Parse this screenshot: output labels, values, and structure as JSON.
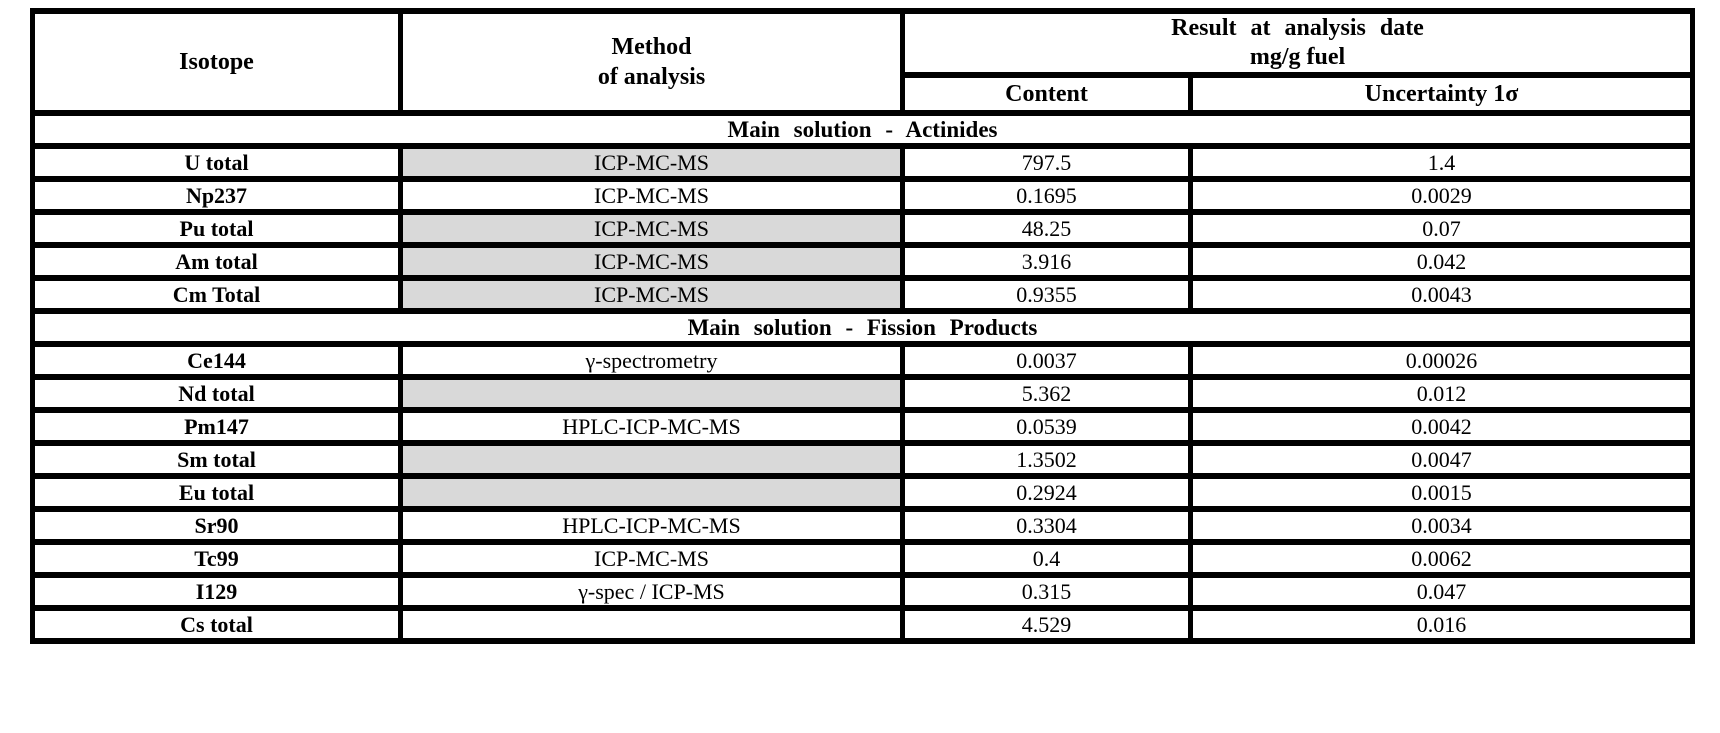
{
  "table": {
    "title": "Isotope analysis results table",
    "headers": {
      "isotope": "Isotope",
      "method_line1": "Method",
      "method_line2": "of analysis",
      "result_line1": "Result at analysis date",
      "result_line2": "mg/g fuel",
      "content": "Content",
      "uncertainty": "Uncertainty 1σ"
    },
    "colors": {
      "method_gray": "#d9d9d9",
      "border": "#000000",
      "background": "#ffffff"
    },
    "sections": [
      {
        "title": "Main solution - Actinides",
        "rows": [
          {
            "isotope": "U total",
            "method": "ICP-MC-MS",
            "method_gray": true,
            "content": "797.5",
            "uncertainty": "1.4"
          },
          {
            "isotope": "Np237",
            "method": "ICP-MC-MS",
            "method_gray": false,
            "content": "0.1695",
            "uncertainty": "0.0029"
          },
          {
            "isotope": "Pu total",
            "method": "ICP-MC-MS",
            "method_gray": true,
            "content": "48.25",
            "uncertainty": "0.07"
          },
          {
            "isotope": "Am total",
            "method": "ICP-MC-MS",
            "method_gray": true,
            "content": "3.916",
            "uncertainty": "0.042"
          },
          {
            "isotope": "Cm Total",
            "method": "ICP-MC-MS",
            "method_gray": true,
            "content": "0.9355",
            "uncertainty": "0.0043"
          }
        ]
      },
      {
        "title": "Main solution - Fission Products",
        "rows": [
          {
            "isotope": "Ce144",
            "method": "γ-spectrometry",
            "method_gray": false,
            "content": "0.0037",
            "uncertainty": "0.00026"
          },
          {
            "isotope": "Nd total",
            "method": "",
            "method_gray": true,
            "content": "5.362",
            "uncertainty": "0.012"
          },
          {
            "isotope": "Pm147",
            "method": "HPLC-ICP-MC-MS",
            "method_gray": false,
            "content": "0.0539",
            "uncertainty": "0.0042"
          },
          {
            "isotope": "Sm total",
            "method": "",
            "method_gray": true,
            "content": "1.3502",
            "uncertainty": "0.0047"
          },
          {
            "isotope": "Eu total",
            "method": "",
            "method_gray": true,
            "content": "0.2924",
            "uncertainty": "0.0015"
          },
          {
            "isotope": "Sr90",
            "method": "HPLC-ICP-MC-MS",
            "method_gray": false,
            "content": "0.3304",
            "uncertainty": "0.0034"
          },
          {
            "isotope": "Tc99",
            "method": "ICP-MC-MS",
            "method_gray": false,
            "content": "0.4",
            "uncertainty": "0.0062"
          },
          {
            "isotope": "I129",
            "method": "γ-spec / ICP-MS",
            "method_gray": false,
            "content": "0.315",
            "uncertainty": "0.047"
          },
          {
            "isotope": "Cs total",
            "method": "",
            "method_gray": false,
            "content": "4.529",
            "uncertainty": "0.016"
          }
        ]
      }
    ]
  }
}
